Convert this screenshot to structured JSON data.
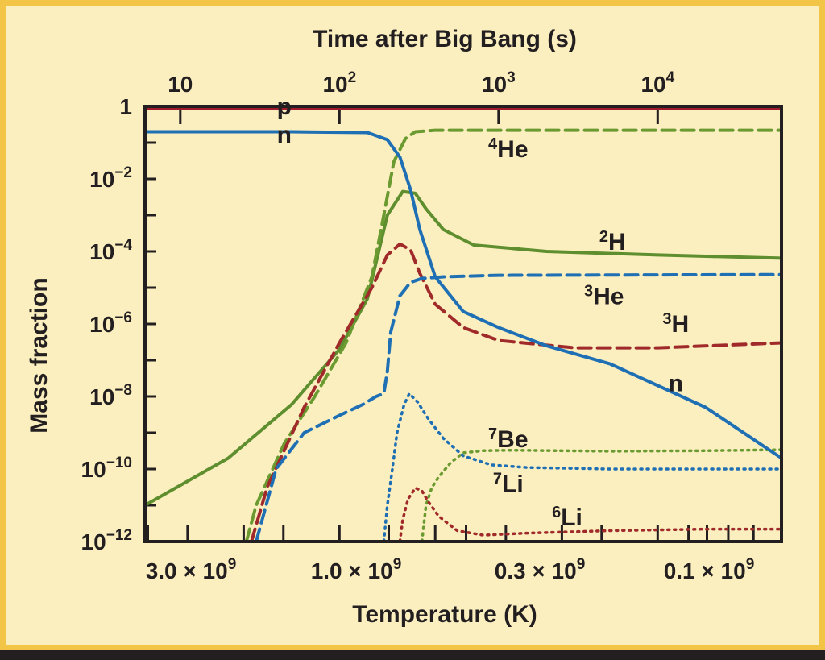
{
  "chart_data": {
    "type": "line",
    "colors": {
      "background": "#fbefc0",
      "border": "#f2c547",
      "bottom_bar": "#231f20",
      "p": "#a01c2c",
      "n": "#1f6fb4",
      "He4": "#6a9a30",
      "H2": "#5e8e2e",
      "He3": "#1f6fb4",
      "H3": "#a02a2a",
      "Be7": "#6a9a30",
      "Li7": "#1f6fb4",
      "Li6": "#a02a2a"
    },
    "top_axis": {
      "label": "Time after Big Bang (s)",
      "scale": "log",
      "range_s": [
        6,
        60000
      ],
      "ticks": [
        {
          "value": 10,
          "base": "10",
          "exp": ""
        },
        {
          "value": 100,
          "base": "10",
          "exp": "2"
        },
        {
          "value": 1000,
          "base": "10",
          "exp": "3"
        },
        {
          "value": 10000,
          "base": "10",
          "exp": "4"
        }
      ]
    },
    "bottom_axis": {
      "label": "Temperature (K)",
      "ticks": [
        {
          "value_K": 3000000000.0,
          "text": "3.0 × 10",
          "exp": "9"
        },
        {
          "value_K": 1000000000.0,
          "text": "1.0 × 10",
          "exp": "9"
        },
        {
          "value_K": 300000000.0,
          "text": "0.3 × 10",
          "exp": "9"
        },
        {
          "value_K": 100000000.0,
          "text": "0.1 × 10",
          "exp": "9"
        }
      ]
    },
    "y_axis": {
      "label": "Mass fraction",
      "scale": "log",
      "range": [
        1e-12,
        1
      ],
      "ticks": [
        {
          "value": 1,
          "base": "1",
          "exp": ""
        },
        {
          "value": 0.01,
          "base": "10",
          "exp": "−2"
        },
        {
          "value": 0.0001,
          "base": "10",
          "exp": "−4"
        },
        {
          "value": 1e-06,
          "base": "10",
          "exp": "−6"
        },
        {
          "value": 1e-08,
          "base": "10",
          "exp": "−8"
        },
        {
          "value": 1e-10,
          "base": "10",
          "exp": "−10"
        },
        {
          "value": 1e-12,
          "base": "10",
          "exp": "−12"
        }
      ]
    },
    "x_units": "time_s",
    "series": [
      {
        "key": "p",
        "style": "solid",
        "x": [
          6,
          60000
        ],
        "y": [
          0.87,
          0.87
        ]
      },
      {
        "key": "n",
        "style": "solid",
        "x": [
          6,
          50,
          150,
          200,
          240,
          280,
          320,
          400,
          600,
          1000,
          2000,
          5000,
          20000,
          60000
        ],
        "y": [
          0.2,
          0.2,
          0.19,
          0.12,
          0.04,
          0.005,
          0.0004,
          2e-05,
          2.2e-06,
          8e-07,
          2.5e-07,
          8e-08,
          5e-09,
          2e-10
        ]
      },
      {
        "key": "He4",
        "style": "dashed",
        "x": [
          26,
          30,
          45,
          70,
          110,
          160,
          190,
          220,
          260,
          300,
          400,
          1000,
          60000
        ],
        "y": [
          1e-12,
          1e-11,
          5e-10,
          1e-08,
          3e-07,
          2e-05,
          0.001,
          0.03,
          0.13,
          0.2,
          0.22,
          0.22,
          0.22
        ]
      },
      {
        "key": "H2",
        "style": "solid",
        "x": [
          6,
          20,
          50,
          100,
          150,
          200,
          250,
          300,
          350,
          450,
          700,
          2000,
          10000,
          60000
        ],
        "y": [
          1e-11,
          2e-10,
          6e-09,
          2e-07,
          5e-06,
          0.001,
          0.0045,
          0.004,
          0.0015,
          0.0004,
          0.00015,
          0.0001,
          8e-05,
          6.5e-05
        ]
      },
      {
        "key": "H3",
        "style": "dashed",
        "x": [
          28,
          35,
          60,
          100,
          160,
          200,
          240,
          280,
          320,
          400,
          600,
          1000,
          3000,
          10000,
          60000
        ],
        "y": [
          1e-12,
          3e-11,
          5e-09,
          3e-07,
          1e-05,
          8e-05,
          0.00016,
          0.00011,
          2.5e-05,
          3.5e-06,
          8e-07,
          3.5e-07,
          2.2e-07,
          2.2e-07,
          3e-07
        ]
      },
      {
        "key": "He3",
        "style": "dashed",
        "x": [
          30,
          40,
          60,
          100,
          140,
          170,
          190,
          200,
          210,
          240,
          280,
          330,
          450,
          1000,
          60000
        ],
        "y": [
          1e-12,
          1e-10,
          1e-09,
          3e-09,
          6e-09,
          1e-08,
          1.2e-08,
          5e-08,
          6e-07,
          6e-06,
          1.4e-05,
          1.8e-05,
          2e-05,
          2.2e-05,
          2.3e-05
        ]
      },
      {
        "key": "Be7",
        "style": "dotted",
        "x": [
          330,
          350,
          380,
          420,
          500,
          600,
          800,
          1200,
          5000,
          20000,
          60000
        ],
        "y": [
          1e-12,
          1e-11,
          3e-11,
          6e-11,
          1.5e-10,
          2.8e-10,
          3.2e-10,
          3.3e-10,
          3.1e-10,
          3.2e-10,
          3.4e-10
        ]
      },
      {
        "key": "Li7",
        "style": "dotted",
        "x": [
          190,
          200,
          215,
          230,
          255,
          275,
          310,
          360,
          450,
          600,
          900,
          1500,
          5000,
          20000,
          60000
        ],
        "y": [
          1e-12,
          1e-11,
          1e-10,
          1e-09,
          6e-09,
          1.2e-08,
          7e-09,
          2.5e-09,
          7e-10,
          2.3e-10,
          1.3e-10,
          1.1e-10,
          1e-10,
          1e-10,
          1e-10
        ]
      },
      {
        "key": "Li6",
        "style": "dotted",
        "x": [
          240,
          250,
          270,
          300,
          330,
          360,
          420,
          550,
          800,
          1500,
          5000,
          20000,
          60000
        ],
        "y": [
          1e-12,
          4e-12,
          1.5e-11,
          3e-11,
          2.5e-11,
          1.3e-11,
          5e-12,
          2e-12,
          1.5e-12,
          1.7e-12,
          2e-12,
          2.2e-12,
          2.2e-12
        ]
      }
    ],
    "annotations": [
      {
        "key": "p",
        "prefix": "",
        "text": "p",
        "at_s": 45,
        "at_y": 0.6
      },
      {
        "key": "n-top",
        "prefix": "",
        "text": "n",
        "at_s": 45,
        "at_y": 0.1
      },
      {
        "key": "He4",
        "prefix": "4",
        "text": "He",
        "at_s": 1150,
        "at_y": 0.04
      },
      {
        "key": "H2",
        "prefix": "2",
        "text": "H",
        "at_s": 5200,
        "at_y": 0.00011
      },
      {
        "key": "He3",
        "prefix": "3",
        "text": "He",
        "at_s": 4600,
        "at_y": 3.5e-06
      },
      {
        "key": "H3",
        "prefix": "3",
        "text": "H",
        "at_s": 13000,
        "at_y": 6e-07
      },
      {
        "key": "n-bottom",
        "prefix": "",
        "text": "n",
        "at_s": 13000,
        "at_y": 1.4e-08
      },
      {
        "key": "Be7",
        "prefix": "7",
        "text": "Be",
        "at_s": 1150,
        "at_y": 4e-10
      },
      {
        "key": "Li7",
        "prefix": "7",
        "text": "Li",
        "at_s": 1150,
        "at_y": 2.3e-11
      },
      {
        "key": "Li6",
        "prefix": "6",
        "text": "Li",
        "at_s": 2700,
        "at_y": 2.8e-12
      }
    ]
  }
}
